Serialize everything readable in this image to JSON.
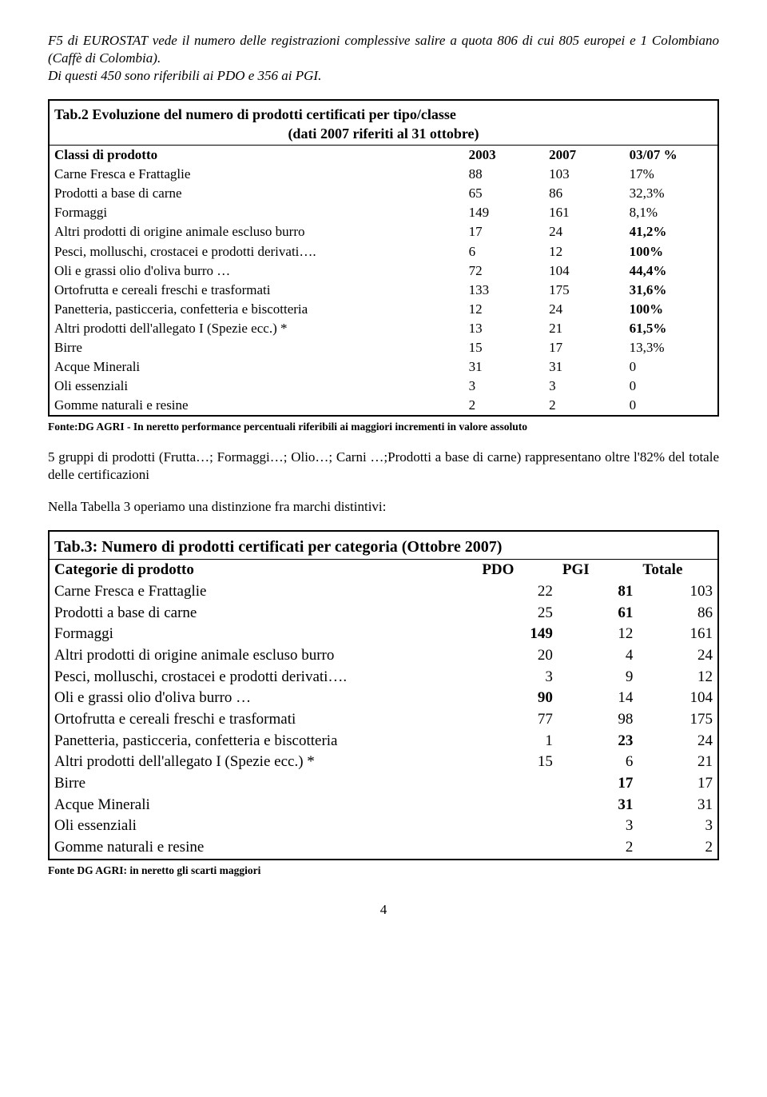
{
  "intro": {
    "p1_a": "F5 di EUROSTAT vede il numero delle registrazioni complessive salire a quota 806 di cui 805 europei e 1 Colombiano (Caffè di Colombia).",
    "p1_b": "Di questi 450 sono riferibili ai PDO e 356 ai PGI."
  },
  "table2": {
    "title_l1": "Tab.2 Evoluzione del numero di prodotti certificati per tipo/classe",
    "title_l2": "(dati 2007 riferiti al 31 ottobre)",
    "head": {
      "c1": "Classi di prodotto",
      "c2": "2003",
      "c3": "2007",
      "c4": "03/07 %"
    },
    "rows": [
      {
        "label": "Carne Fresca e Frattaglie",
        "v1": "88",
        "v2": "103",
        "v3": "17%",
        "bold": false
      },
      {
        "label": "Prodotti a base di carne",
        "v1": "65",
        "v2": "86",
        "v3": "32,3%",
        "bold": false
      },
      {
        "label": "Formaggi",
        "v1": "149",
        "v2": "161",
        "v3": "8,1%",
        "bold": false
      },
      {
        "label": "Altri prodotti di origine animale escluso burro",
        "v1": "17",
        "v2": "24",
        "v3": "41,2%",
        "bold": true
      },
      {
        "label": "Pesci, molluschi, crostacei e prodotti derivati….",
        "v1": "6",
        "v2": "12",
        "v3": "100%",
        "bold": true
      },
      {
        "label": "Oli e grassi olio d'oliva burro …",
        "v1": "72",
        "v2": "104",
        "v3": "44,4%",
        "bold": true
      },
      {
        "label": "Ortofrutta e cereali freschi e trasformati",
        "v1": "133",
        "v2": "175",
        "v3": "31,6%",
        "bold": true
      },
      {
        "label": "Panetteria, pasticceria, confetteria e biscotteria",
        "v1": "12",
        "v2": "24",
        "v3": "100%",
        "bold": true
      },
      {
        "label": "Altri prodotti dell'allegato I (Spezie ecc.) *",
        "v1": "13",
        "v2": "21",
        "v3": "61,5%",
        "bold": true
      },
      {
        "label": "Birre",
        "v1": "15",
        "v2": "17",
        "v3": "13,3%",
        "bold": false
      },
      {
        "label": "Acque Minerali",
        "v1": "31",
        "v2": "31",
        "v3": "0",
        "bold": false
      },
      {
        "label": "Oli essenziali",
        "v1": "3",
        "v2": "3",
        "v3": "0",
        "bold": false
      },
      {
        "label": "Gomme naturali e resine",
        "v1": "2",
        "v2": "2",
        "v3": "0",
        "bold": false
      }
    ],
    "footnote": "Fonte:DG AGRI - In neretto performance percentuali riferibili ai maggiori incrementi in valore assoluto"
  },
  "mid": {
    "p1": "5 gruppi di prodotti (Frutta…; Formaggi…; Olio…; Carni …;Prodotti a base di carne) rappresentano oltre l'82% del totale delle certificazioni",
    "p2": "Nella Tabella 3 operiamo una distinzione fra marchi distintivi:"
  },
  "table3": {
    "title": "Tab.3: Numero di prodotti certificati per categoria (Ottobre 2007)",
    "head": {
      "c1": "Categorie di prodotto",
      "c2": "PDO",
      "c3": "PGI",
      "c4": "Totale"
    },
    "rows": [
      {
        "label": "Carne Fresca e Frattaglie",
        "v1": "22",
        "v2": "81",
        "v3": "103",
        "b1": false,
        "b2": true,
        "b3": false
      },
      {
        "label": "Prodotti a base di carne",
        "v1": "25",
        "v2": "61",
        "v3": "86",
        "b1": false,
        "b2": true,
        "b3": false
      },
      {
        "label": "Formaggi",
        "v1": "149",
        "v2": "12",
        "v3": "161",
        "b1": true,
        "b2": false,
        "b3": false
      },
      {
        "label": "Altri prodotti di origine animale escluso burro",
        "v1": "20",
        "v2": "4",
        "v3": "24",
        "b1": false,
        "b2": false,
        "b3": false
      },
      {
        "label": "Pesci, molluschi, crostacei e prodotti derivati….",
        "v1": "3",
        "v2": "9",
        "v3": "12",
        "b1": false,
        "b2": false,
        "b3": false
      },
      {
        "label": "Oli e grassi olio d'oliva burro …",
        "v1": "90",
        "v2": "14",
        "v3": "104",
        "b1": true,
        "b2": false,
        "b3": false
      },
      {
        "label": "Ortofrutta e cereali freschi e trasformati",
        "v1": "77",
        "v2": "98",
        "v3": "175",
        "b1": false,
        "b2": false,
        "b3": false
      },
      {
        "label": "Panetteria, pasticceria, confetteria e biscotteria",
        "v1": "1",
        "v2": "23",
        "v3": "24",
        "b1": false,
        "b2": true,
        "b3": false
      },
      {
        "label": "Altri prodotti dell'allegato I (Spezie ecc.) *",
        "v1": "15",
        "v2": "6",
        "v3": "21",
        "b1": false,
        "b2": false,
        "b3": false
      },
      {
        "label": "Birre",
        "v1": "",
        "v2": "17",
        "v3": "17",
        "b1": false,
        "b2": true,
        "b3": false
      },
      {
        "label": "Acque Minerali",
        "v1": "",
        "v2": "31",
        "v3": "31",
        "b1": false,
        "b2": true,
        "b3": false
      },
      {
        "label": "Oli essenziali",
        "v1": "",
        "v2": "3",
        "v3": "3",
        "b1": false,
        "b2": false,
        "b3": false
      },
      {
        "label": "Gomme naturali e resine",
        "v1": "",
        "v2": "2",
        "v3": "2",
        "b1": false,
        "b2": false,
        "b3": false
      }
    ],
    "footnote": "Fonte DG AGRI: in neretto gli scarti maggiori"
  },
  "page_number": "4"
}
